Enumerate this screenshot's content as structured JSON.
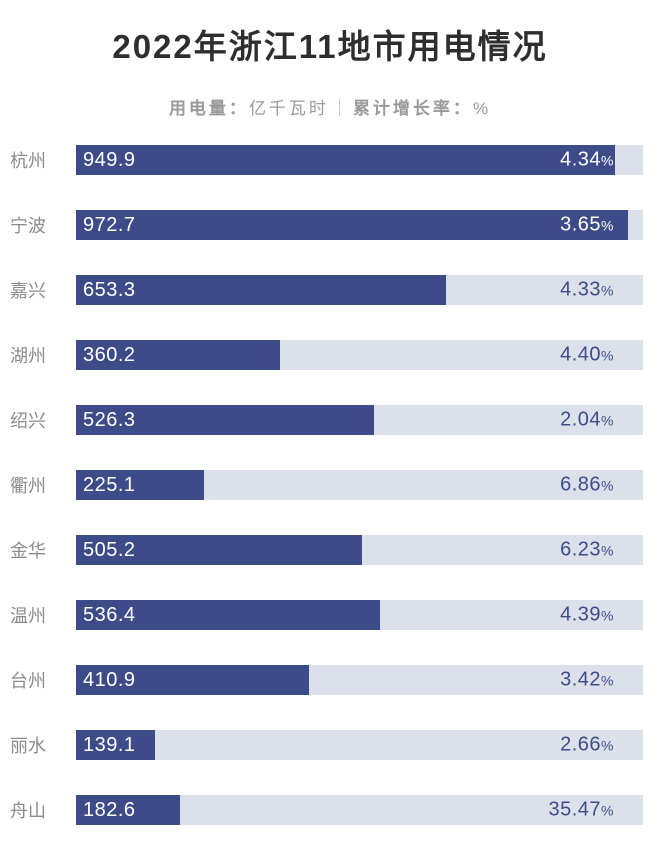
{
  "header": {
    "title": "2022年浙江11地市用电情况",
    "subtitle": {
      "left_label": "用电量：",
      "left_value": "亿千瓦时",
      "divider": "｜",
      "right_label": "累计增长率：",
      "right_value": "%"
    }
  },
  "colors": {
    "bar": "#3D4C88",
    "track": "#DCE0EB",
    "percent_text": "#3D4C88",
    "title": "#2E2E2E",
    "subtitle": "#9A9A9A",
    "category_label": "#8C8C8C",
    "value_text": "#FFFFFF",
    "background": "#FFFFFF"
  },
  "chart_data": {
    "type": "bar",
    "orientation": "horizontal",
    "title": "2022年浙江11地市用电情况",
    "subtitle": "用电量：亿千瓦时｜累计增长率：%",
    "categories": [
      "杭州",
      "宁波",
      "嘉兴",
      "湖州",
      "绍兴",
      "衢州",
      "金华",
      "温州",
      "台州",
      "丽水",
      "舟山"
    ],
    "series": [
      {
        "name": "用电量（亿千瓦时）",
        "values": [
          949.9,
          972.7,
          653.3,
          360.2,
          526.3,
          225.1,
          505.2,
          536.4,
          410.9,
          139.1,
          182.6
        ]
      },
      {
        "name": "累计增长率（%）",
        "values": [
          4.34,
          3.65,
          4.33,
          4.4,
          2.04,
          6.86,
          6.23,
          4.39,
          3.42,
          2.66,
          35.47
        ]
      }
    ],
    "xlim": [
      0,
      1000
    ],
    "grid": false,
    "legend": false,
    "percent_sign": "%",
    "value_decimals": 1,
    "percent_decimals": 2
  }
}
